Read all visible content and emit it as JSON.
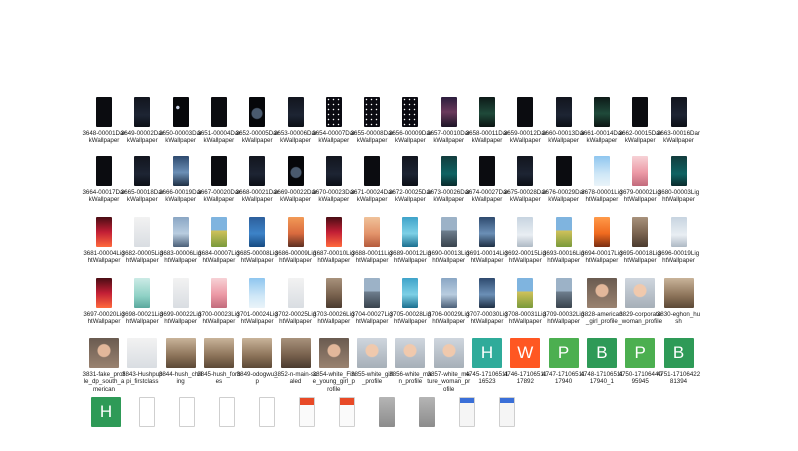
{
  "colors": {
    "letter_teal": "#2fab9a",
    "letter_orange": "#ff5722",
    "letter_green": "#4caf50",
    "letter_darkgreen": "#2e9a57"
  },
  "rows": [
    [
      {
        "label": "3648-00001DarkWallpaper",
        "thumb": "k-dark"
      },
      {
        "label": "3649-00002DarkWallpaper",
        "thumb": "k-night"
      },
      {
        "label": "3650-00003DarkWallpaper",
        "thumb": "k-moon"
      },
      {
        "label": "3651-00004DarkWallpaper",
        "thumb": "k-dark"
      },
      {
        "label": "3652-00005DarkWallpaper",
        "thumb": "k-planet"
      },
      {
        "label": "3653-00006DarkWallpaper",
        "thumb": "k-night"
      },
      {
        "label": "3654-00007DarkWallpaper",
        "thumb": "k-stars"
      },
      {
        "label": "3655-00008DarkWallpaper",
        "thumb": "k-stars"
      },
      {
        "label": "3656-00009DarkWallpaper",
        "thumb": "k-stars"
      },
      {
        "label": "3657-00010DarkWallpaper",
        "thumb": "k-dusk"
      },
      {
        "label": "3658-00011DarkWallpaper",
        "thumb": "k-aurora"
      },
      {
        "label": "3659-00012DarkWallpaper",
        "thumb": "k-dark"
      },
      {
        "label": "3660-00013DarkWallpaper",
        "thumb": "k-night"
      },
      {
        "label": "3661-00014DarkWallpaper",
        "thumb": "k-aurora"
      },
      {
        "label": "3662-00015DarkWallpaper",
        "thumb": "k-dark"
      },
      {
        "label": "3663-00016DarkWallpaper",
        "thumb": "k-night"
      }
    ],
    [
      {
        "label": "3664-00017DarkWallpaper",
        "thumb": "k-dark"
      },
      {
        "label": "3665-00018DarkWallpaper",
        "thumb": "k-night"
      },
      {
        "label": "3666-00019DarkWallpaper",
        "thumb": "k-city"
      },
      {
        "label": "3667-00020DarkWallpaper",
        "thumb": "k-dark"
      },
      {
        "label": "3668-00021DarkWallpaper",
        "thumb": "k-night"
      },
      {
        "label": "3669-00022DarkWallpaper",
        "thumb": "k-planet"
      },
      {
        "label": "3670-00023DarkWallpaper",
        "thumb": "k-night"
      },
      {
        "label": "3671-00024DarkWallpaper",
        "thumb": "k-dark"
      },
      {
        "label": "3672-00025DarkWallpaper",
        "thumb": "k-night"
      },
      {
        "label": "3673-00026DarkWallpaper",
        "thumb": "k-teal"
      },
      {
        "label": "3674-00027DarkWallpaper",
        "thumb": "k-dark"
      },
      {
        "label": "3675-00028DarkWallpaper",
        "thumb": "k-night"
      },
      {
        "label": "3676-00029DarkWallpaper",
        "thumb": "k-dark"
      },
      {
        "label": "3678-00001LightWallpaper",
        "thumb": "k-sky"
      },
      {
        "label": "3679-00002LightWallpaper",
        "thumb": "k-pink"
      },
      {
        "label": "3680-00003LightWallpaper",
        "thumb": "k-teal"
      }
    ],
    [
      {
        "label": "3681-00004LightWallpaper",
        "thumb": "k-red"
      },
      {
        "label": "3682-00005LightWallpaper",
        "thumb": "k-white"
      },
      {
        "label": "3683-00006LightWallpaper",
        "thumb": "k-tower"
      },
      {
        "label": "3684-00007LightWallpaper",
        "thumb": "k-field"
      },
      {
        "label": "3685-00008LightWallpaper",
        "thumb": "k-ocean"
      },
      {
        "label": "3686-00009LightWallpaper",
        "thumb": "k-sunset"
      },
      {
        "label": "3687-00010LightWallpaper",
        "thumb": "k-red"
      },
      {
        "label": "3688-00011LightWallpaper",
        "thumb": "k-desert"
      },
      {
        "label": "3689-00012LightWallpaper",
        "thumb": "k-aqua"
      },
      {
        "label": "3690-00013LightWallpaper",
        "thumb": "k-mtn"
      },
      {
        "label": "3691-00014LightWallpaper",
        "thumb": "k-city"
      },
      {
        "label": "3692-00015LightWallpaper",
        "thumb": "k-cloud"
      },
      {
        "label": "3693-00016LightWallpaper",
        "thumb": "k-field"
      },
      {
        "label": "3694-00017LightWallpaper",
        "thumb": "k-orange"
      },
      {
        "label": "3695-00018LightWallpaper",
        "thumb": "k-rock"
      },
      {
        "label": "3696-00019LightWallpaper",
        "thumb": "k-cloud"
      }
    ],
    [
      {
        "label": "3697-00020LightWallpaper",
        "thumb": "k-red"
      },
      {
        "label": "3698-00021LightWallpaper",
        "thumb": "k-mint"
      },
      {
        "label": "3699-00022LightWallpaper",
        "thumb": "k-white"
      },
      {
        "label": "3700-00023LightWallpaper",
        "thumb": "k-pink"
      },
      {
        "label": "3701-00024LightWallpaper",
        "thumb": "k-sky"
      },
      {
        "label": "3702-00025LightWallpaper",
        "thumb": "k-white"
      },
      {
        "label": "3703-00026LightWallpaper",
        "thumb": "k-rock"
      },
      {
        "label": "3704-00027LightWallpaper",
        "thumb": "k-mtn"
      },
      {
        "label": "3705-00028LightWallpaper",
        "thumb": "k-aqua"
      },
      {
        "label": "3706-00029LightWallpaper",
        "thumb": "k-tower"
      },
      {
        "label": "3707-00030LightWallpaper",
        "thumb": "k-city"
      },
      {
        "label": "3708-00031LightWallpaper",
        "thumb": "k-field"
      },
      {
        "label": "3709-00032LightWallpaper",
        "thumb": "k-mtn"
      },
      {
        "label": "3828-american_girl_profile",
        "thumb": "k-face",
        "wide": true
      },
      {
        "label": "3829-corporate_woman_profile",
        "thumb": "k-face2",
        "wide": true
      },
      {
        "label": "3830-eghon_hush",
        "thumb": "k-room",
        "wide": true
      }
    ],
    [
      {
        "label": "3831-fake_profile_dp_south_american",
        "thumb": "k-face",
        "wide": true
      },
      {
        "label": "3843-Hushpuppi_firstclass",
        "thumb": "k-white",
        "wide": true
      },
      {
        "label": "3844-hush_chilling",
        "thumb": "k-room",
        "wide": true
      },
      {
        "label": "3845-hush_forbes",
        "thumb": "k-room",
        "wide": true
      },
      {
        "label": "3849-odogwu_p",
        "thumb": "k-room",
        "wide": true
      },
      {
        "label": "3852-n-main-scaled",
        "thumb": "k-rock",
        "wide": true
      },
      {
        "label": "3854-white_Fine_young_girl_profile",
        "thumb": "k-face",
        "wide": true
      },
      {
        "label": "3855-white_girl_profile",
        "thumb": "k-face2",
        "wide": true
      },
      {
        "label": "3856-white_man_profile",
        "thumb": "k-face2",
        "wide": true
      },
      {
        "label": "3857-white_mature_woman_profile",
        "thumb": "k-face2",
        "wide": true
      },
      {
        "label": "4745-1710651116523",
        "letter": "H",
        "color": "letter_teal",
        "wide": true
      },
      {
        "label": "4746-1710651117892",
        "letter": "W",
        "color": "letter_orange",
        "wide": true
      },
      {
        "label": "4747-1710651117940",
        "letter": "P",
        "color": "letter_green",
        "wide": true
      },
      {
        "label": "4748-1710651117940_1",
        "letter": "B",
        "color": "letter_darkgreen",
        "wide": true
      },
      {
        "label": "4750-1710644095945",
        "letter": "P",
        "color": "letter_green",
        "wide": true
      },
      {
        "label": "4751-1710642281394",
        "letter": "B",
        "color": "letter_darkgreen",
        "wide": true
      }
    ],
    [
      {
        "label": "",
        "letter": "H",
        "color": "letter_darkgreen",
        "wide": true
      },
      {
        "label": "",
        "thumb": "k-doc"
      },
      {
        "label": "",
        "thumb": "k-doc"
      },
      {
        "label": "",
        "thumb": "k-doc"
      },
      {
        "label": "",
        "thumb": "k-doc"
      },
      {
        "label": "",
        "thumb": "k-app"
      },
      {
        "label": "",
        "thumb": "k-app"
      },
      {
        "label": "",
        "thumb": "k-gray"
      },
      {
        "label": "",
        "thumb": "k-gray"
      },
      {
        "label": "",
        "thumb": "k-shot"
      },
      {
        "label": "",
        "thumb": "k-shot"
      }
    ]
  ]
}
